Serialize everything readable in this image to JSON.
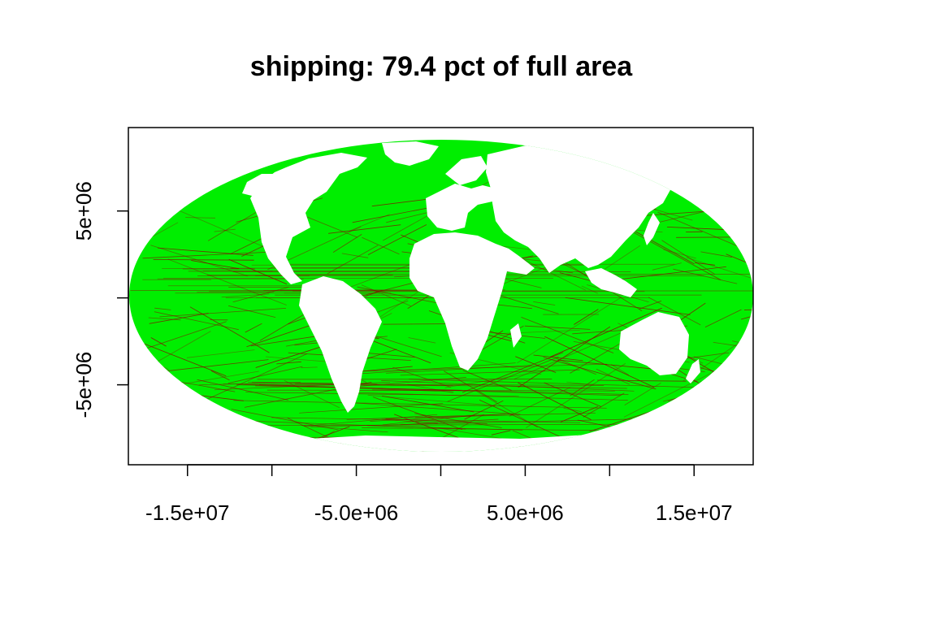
{
  "title": "shipping: 79.4 pct of full area",
  "colors": {
    "background": "#ffffff",
    "ocean_fill": "#00ee00",
    "shipping_lanes": "#8b0000",
    "land": "#ffffff",
    "axes": "#000000"
  },
  "map": {
    "projection": "Mollweide",
    "layer": "shipping",
    "percent_of_full_area": 79.4,
    "xlim": [
      -18500000,
      18500000
    ],
    "ylim": [
      -9600000,
      9800000
    ]
  },
  "x_axis": {
    "ticks": [
      -15000000,
      -10000000,
      -5000000,
      0,
      5000000,
      10000000,
      15000000
    ],
    "labeled_ticks": [
      {
        "value": -15000000,
        "label": "-1.5e+07"
      },
      {
        "value": -5000000,
        "label": "-5.0e+06"
      },
      {
        "value": 5000000,
        "label": "5.0e+06"
      },
      {
        "value": 15000000,
        "label": "1.5e+07"
      }
    ]
  },
  "y_axis": {
    "ticks": [
      -5000000,
      0,
      5000000
    ],
    "labeled_ticks": [
      {
        "value": 5000000,
        "label": "5e+06"
      },
      {
        "value": -5000000,
        "label": "-5e+06"
      }
    ]
  }
}
